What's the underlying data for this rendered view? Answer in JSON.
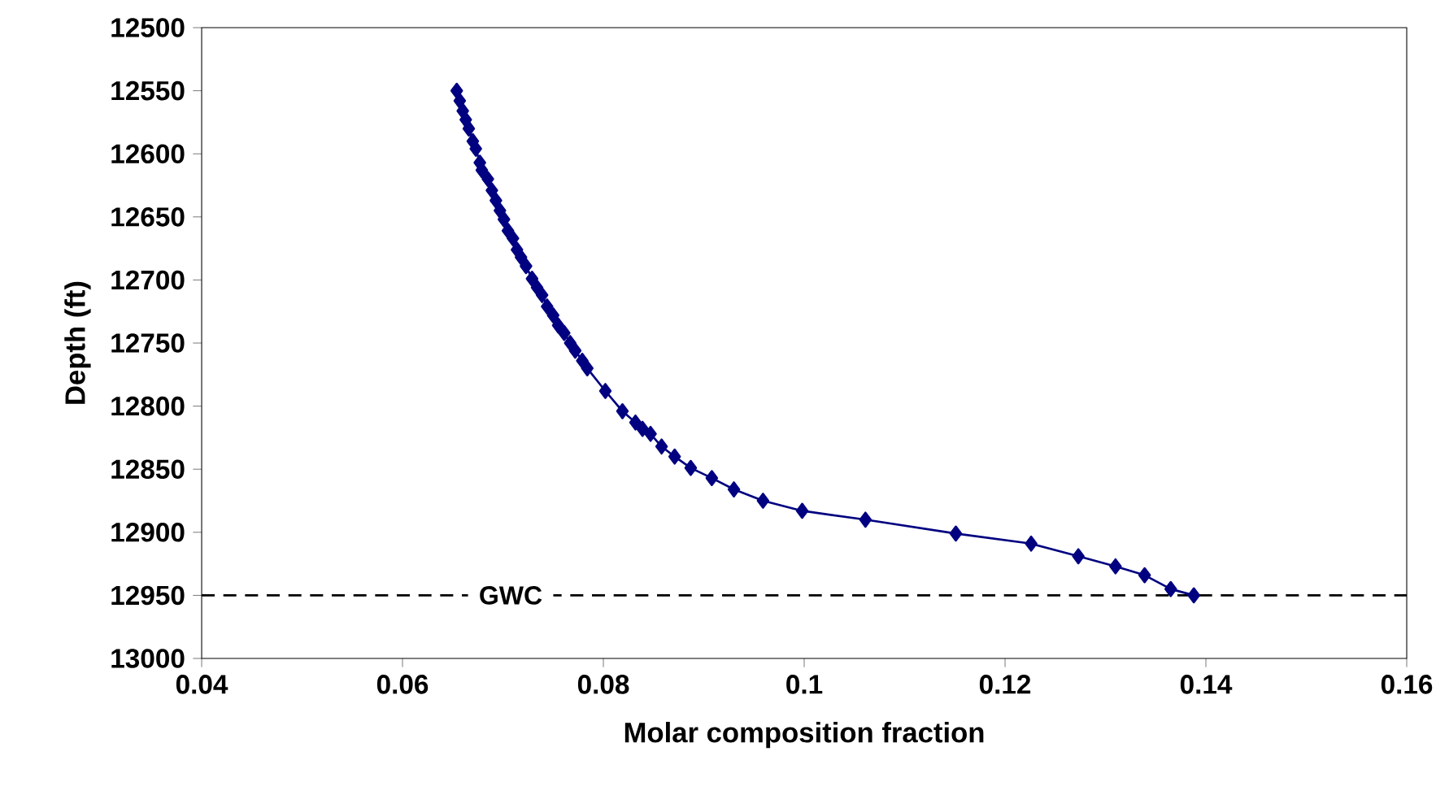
{
  "chart_data": {
    "type": "line",
    "xlabel": "Molar composition fraction",
    "ylabel": "Depth (ft)",
    "xlim": [
      0.04,
      0.16
    ],
    "xticks": [
      0.04,
      0.06,
      0.08,
      0.1,
      0.12,
      0.14,
      0.16
    ],
    "ylim": [
      13000,
      12500
    ],
    "yticks": [
      12500,
      12550,
      12600,
      12650,
      12700,
      12750,
      12800,
      12850,
      12900,
      12950,
      13000
    ],
    "marker": "diamond",
    "line_style": "solid",
    "grid": false,
    "ref_lines": [
      {
        "axis": "y",
        "value": 12950,
        "label": "GWC",
        "color": "#000000",
        "line_style": "dashed"
      }
    ],
    "series": [
      {
        "color": "#000080",
        "x": [
          0.0654,
          0.0657,
          0.066,
          0.0663,
          0.0666,
          0.067,
          0.0673,
          0.0677,
          0.0679,
          0.0685,
          0.0689,
          0.0693,
          0.0697,
          0.0701,
          0.0705,
          0.071,
          0.0714,
          0.0718,
          0.0723,
          0.0729,
          0.0734,
          0.0739,
          0.0744,
          0.075,
          0.0755,
          0.0761,
          0.0767,
          0.0772,
          0.0779,
          0.0784,
          0.0802,
          0.0819,
          0.0832,
          0.0839,
          0.0847,
          0.0858,
          0.0871,
          0.0887,
          0.0908,
          0.093,
          0.0959,
          0.0998,
          0.1061,
          0.1151,
          0.1226,
          0.1273,
          0.131,
          0.1339,
          0.1365,
          0.1388
        ],
        "values": [
          12550,
          12558,
          12566,
          12573,
          12580,
          12590,
          12596,
          12607,
          12613,
          12620,
          12629,
          12637,
          12645,
          12652,
          12661,
          12667,
          12676,
          12682,
          12689,
          12699,
          12706,
          12712,
          12721,
          12728,
          12736,
          12742,
          12750,
          12756,
          12764,
          12770,
          12788,
          12804,
          12813,
          12818,
          12822,
          12832,
          12840,
          12849,
          12857,
          12866,
          12875,
          12883,
          12890,
          12901,
          12909,
          12919,
          12927,
          12934,
          12945,
          12950
        ]
      }
    ]
  }
}
